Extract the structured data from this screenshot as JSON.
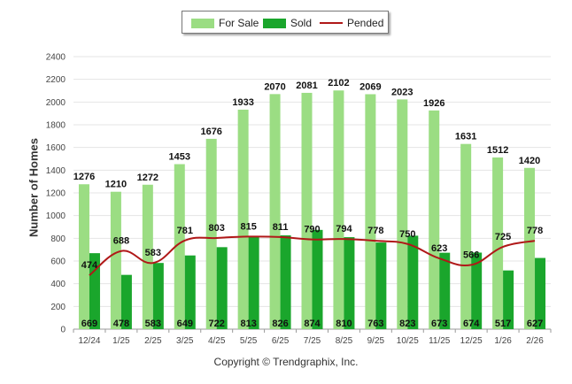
{
  "chart_data": {
    "type": "bar",
    "title": "",
    "xlabel": "",
    "ylabel": "Number of Homes",
    "ylim": [
      0,
      2400
    ],
    "yticks": [
      0,
      200,
      400,
      600,
      800,
      1000,
      1200,
      1400,
      1600,
      1800,
      2000,
      2200,
      2400
    ],
    "grid": true,
    "legend_position": "top-center",
    "categories": [
      "12/24",
      "1/25",
      "2/25",
      "3/25",
      "4/25",
      "5/25",
      "6/25",
      "7/25",
      "8/25",
      "9/25",
      "10/25",
      "11/25",
      "12/25",
      "1/26",
      "2/26"
    ],
    "series": [
      {
        "name": "For Sale",
        "kind": "bar",
        "color": "#9bdd83",
        "values": [
          1276,
          1210,
          1272,
          1453,
          1676,
          1933,
          2070,
          2081,
          2102,
          2069,
          2023,
          1926,
          1631,
          1512,
          1420
        ]
      },
      {
        "name": "Sold",
        "kind": "bar",
        "color": "#1aa62c",
        "values": [
          669,
          478,
          583,
          649,
          722,
          813,
          826,
          874,
          810,
          763,
          823,
          673,
          674,
          517,
          627
        ]
      },
      {
        "name": "Pended",
        "kind": "line",
        "color": "#b01818",
        "values": [
          474,
          688,
          583,
          781,
          803,
          815,
          811,
          790,
          794,
          778,
          750,
          623,
          566,
          725,
          778
        ]
      }
    ]
  },
  "footer": {
    "copyright": "Copyright © Trendgraphix, Inc."
  }
}
